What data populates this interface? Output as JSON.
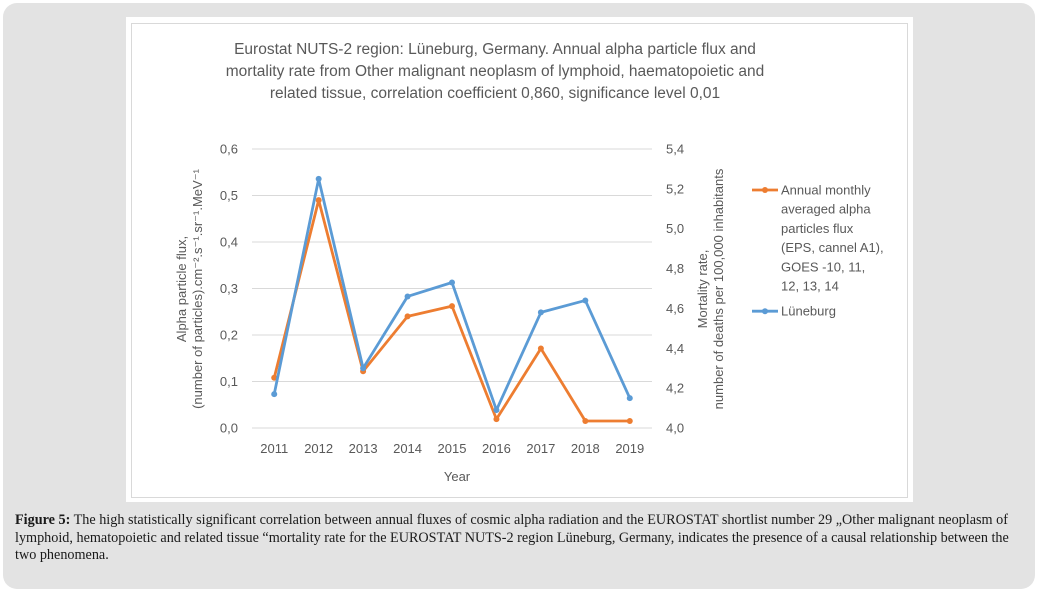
{
  "chart_data": {
    "type": "line",
    "title_lines": [
      "Eurostat NUTS-2 region: Lüneburg, Germany. Annual alpha particle flux and",
      "mortality rate from Other malignant neoplasm of lymphoid, haematopoietic and",
      "related tissue, correlation coefficient 0,860, significance level 0,01"
    ],
    "categories": [
      "2011",
      "2012",
      "2013",
      "2014",
      "2015",
      "2016",
      "2017",
      "2018",
      "2019"
    ],
    "xlabel": "Year",
    "ylabel_left_lines": [
      "Alpha particle flux,",
      "(number of particles).cm⁻².s⁻¹.sr⁻¹.MeV⁻¹"
    ],
    "ylabel_right_lines": [
      "Mortality rate,",
      "number of deaths per 100,000 inhabitants"
    ],
    "y_left": {
      "min": 0.0,
      "max": 0.6,
      "step": 0.1,
      "tick_labels": [
        "0,0",
        "0,1",
        "0,2",
        "0,3",
        "0,4",
        "0,5",
        "0,6"
      ]
    },
    "y_right": {
      "min": 4.0,
      "max": 5.4,
      "step": 0.2,
      "tick_labels": [
        "4,0",
        "4,2",
        "4,4",
        "4,6",
        "4,8",
        "5,0",
        "5,2",
        "5,4"
      ]
    },
    "grid": true,
    "legend_position": "right",
    "series": [
      {
        "name": "Annual monthly averaged alpha particles flux (EPS, cannel A1), GOES -10, 11, 12, 13, 14",
        "legend_lines": [
          "Annual monthly",
          "averaged alpha",
          "particles flux",
          "(EPS, cannel A1),",
          "GOES -10, 11,",
          "12, 13, 14"
        ],
        "axis": "left",
        "color": "#ED7D31",
        "values": [
          0.108,
          0.49,
          0.122,
          0.24,
          0.262,
          0.019,
          0.171,
          0.015,
          0.015
        ]
      },
      {
        "name": "Lüneburg",
        "legend_lines": [
          "Lüneburg"
        ],
        "axis": "right",
        "color": "#5B9BD5",
        "values": [
          4.17,
          5.25,
          4.3,
          4.66,
          4.73,
          4.09,
          4.58,
          4.64,
          4.15
        ]
      }
    ]
  },
  "caption": {
    "label": "Figure 5:",
    "text": " The high statistically significant correlation between annual fluxes of cosmic alpha radiation and the EUROSTAT shortlist number 29 „Other malignant neoplasm of lymphoid, hematopoietic and related tissue “mortality rate for the EUROSTAT NUTS-2 region Lüneburg, Germany, indicates the presence of a causal relationship between the two phenomena."
  }
}
